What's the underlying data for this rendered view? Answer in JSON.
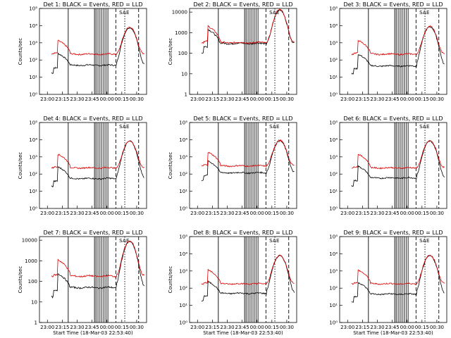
{
  "chart_data": [
    {
      "type": "line",
      "title": "Det 1: BLACK = Events, RED = LLD",
      "xlabel": "",
      "ylabel": "Counts/sec",
      "yticks": [
        "10⁰",
        "10¹",
        "10²",
        "10³",
        "10⁴",
        "10⁵"
      ],
      "ylim": [
        1,
        100000
      ],
      "log_y": true,
      "xticks": [
        "23:00",
        "23:15",
        "23:30",
        "23:45",
        "00:00",
        "00:15",
        "00:30"
      ],
      "xlim": [
        -8,
        100
      ],
      "markers": [
        "S",
        "A",
        "E"
      ],
      "black_level": 50,
      "red_level": 220,
      "peak": 8000
    },
    {
      "type": "line",
      "title": "Det 2: BLACK = Events, RED = LLD",
      "xlabel": "",
      "ylabel": "Counts/sec",
      "yticks": [
        "1",
        "10",
        "100",
        "1000",
        "10000"
      ],
      "ylim": [
        1,
        15000
      ],
      "log_y": true,
      "xticks": [
        "23:00",
        "23:15",
        "23:30",
        "23:45",
        "00:00",
        "00:15",
        "00:30"
      ],
      "xlim": [
        -8,
        100
      ],
      "markers": [
        "S",
        "A",
        "E"
      ],
      "black_level": 300,
      "red_level": 330,
      "peak": 13000
    },
    {
      "type": "line",
      "title": "Det 3: BLACK = Events, RED = LLD",
      "xlabel": "",
      "ylabel": "",
      "yticks": [
        "10⁰",
        "10¹",
        "10²",
        "10³",
        "10⁴",
        "10⁵"
      ],
      "ylim": [
        1,
        100000
      ],
      "log_y": true,
      "xticks": [
        "23:00",
        "23:15",
        "23:30",
        "23:45",
        "00:00",
        "00:15",
        "00:30"
      ],
      "xlim": [
        -8,
        100
      ],
      "markers": [
        "S",
        "A",
        "E"
      ],
      "black_level": 45,
      "red_level": 220,
      "peak": 9000
    },
    {
      "type": "line",
      "title": "Det 4: BLACK = Events, RED = LLD",
      "xlabel": "",
      "ylabel": "Counts/sec",
      "yticks": [
        "10⁰",
        "10¹",
        "10²",
        "10³",
        "10⁴",
        "10⁵"
      ],
      "ylim": [
        1,
        100000
      ],
      "log_y": true,
      "xticks": [
        "23:00",
        "23:15",
        "23:30",
        "23:45",
        "00:00",
        "00:15",
        "00:30"
      ],
      "xlim": [
        -8,
        100
      ],
      "markers": [
        "S",
        "A",
        "E"
      ],
      "black_level": 55,
      "red_level": 230,
      "peak": 8500
    },
    {
      "type": "line",
      "title": "Det 5: BLACK = Events, RED = LLD",
      "xlabel": "",
      "ylabel": "Counts/sec",
      "yticks": [
        "10⁰",
        "10¹",
        "10²",
        "10³",
        "10⁴",
        "10⁵"
      ],
      "ylim": [
        1,
        100000
      ],
      "log_y": true,
      "xticks": [
        "23:00",
        "23:15",
        "23:30",
        "23:45",
        "00:00",
        "00:15",
        "00:30"
      ],
      "xlim": [
        -8,
        100
      ],
      "markers": [
        "S",
        "A",
        "E"
      ],
      "black_level": 120,
      "red_level": 300,
      "peak": 9000
    },
    {
      "type": "line",
      "title": "Det 6: BLACK = Events, RED = LLD",
      "xlabel": "",
      "ylabel": "",
      "yticks": [
        "10⁰",
        "10¹",
        "10²",
        "10³",
        "10⁴",
        "10⁵"
      ],
      "ylim": [
        1,
        100000
      ],
      "log_y": true,
      "xticks": [
        "23:00",
        "23:15",
        "23:30",
        "23:45",
        "00:00",
        "00:15",
        "00:30"
      ],
      "xlim": [
        -8,
        100
      ],
      "markers": [
        "S",
        "A",
        "E"
      ],
      "black_level": 60,
      "red_level": 230,
      "peak": 8500
    },
    {
      "type": "line",
      "title": "Det 7: BLACK = Events, RED = LLD",
      "xlabel": "Start Time (18-Mar-03 22:53:40)",
      "ylabel": "Counts/sec",
      "yticks": [
        "1",
        "10",
        "100",
        "1000",
        "10000"
      ],
      "ylim": [
        1,
        15000
      ],
      "log_y": true,
      "xticks": [
        "23:00",
        "23:15",
        "23:30",
        "23:45",
        "00:00",
        "00:15",
        "00:30"
      ],
      "xlim": [
        -8,
        100
      ],
      "markers": [
        "S",
        "A",
        "E"
      ],
      "black_level": 50,
      "red_level": 180,
      "peak": 9000
    },
    {
      "type": "line",
      "title": "Det 8: BLACK = Events, RED = LLD",
      "xlabel": "Start Time (18-Mar-03 22:53:40)",
      "ylabel": "Counts/sec",
      "yticks": [
        "10⁰",
        "10¹",
        "10²",
        "10³",
        "10⁴",
        "10⁵"
      ],
      "ylim": [
        1,
        100000
      ],
      "log_y": true,
      "xticks": [
        "23:00",
        "23:15",
        "23:30",
        "23:45",
        "00:00",
        "00:15",
        "00:30"
      ],
      "xlim": [
        -8,
        100
      ],
      "markers": [
        "S",
        "A",
        "E"
      ],
      "black_level": 50,
      "red_level": 180,
      "peak": 8000
    },
    {
      "type": "line",
      "title": "Det 9: BLACK = Events, RED = LLD",
      "xlabel": "Start Time (18-Mar-03 22:53:40)",
      "ylabel": "",
      "yticks": [
        "10⁰",
        "10¹",
        "10²",
        "10³",
        "10⁴",
        "10⁵"
      ],
      "ylim": [
        1,
        100000
      ],
      "log_y": true,
      "xticks": [
        "23:00",
        "23:15",
        "23:30",
        "23:45",
        "00:00",
        "00:15",
        "00:30"
      ],
      "xlim": [
        -8,
        100
      ],
      "markers": [
        "S",
        "A",
        "E"
      ],
      "black_level": 45,
      "red_level": 180,
      "peak": 8000
    }
  ],
  "colors": {
    "events": "#000000",
    "lld": "#dd0000",
    "background": "#ffffff"
  }
}
